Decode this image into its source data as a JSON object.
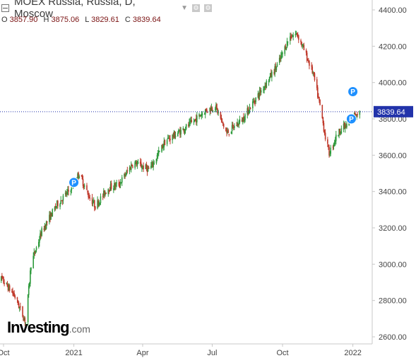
{
  "header": {
    "title": "MOEX Russia, Russia, D, Moscow",
    "ohlc": [
      {
        "label": "O",
        "value": "3857.90"
      },
      {
        "label": "H",
        "value": "3875.06"
      },
      {
        "label": "L",
        "value": "3829.61"
      },
      {
        "label": "C",
        "value": "3839.64"
      }
    ]
  },
  "brand": {
    "name": "Investing",
    "suffix": ".com"
  },
  "colors": {
    "up": "#2e9a3c",
    "down": "#c0392b",
    "axis": "#c8c8c8",
    "price_line": "#2233aa",
    "marker": "#1e90ff"
  },
  "chart_data": {
    "type": "candlestick",
    "title": "MOEX Russia, Russia, D, Moscow",
    "ylim": [
      2550,
      4470
    ],
    "y_ticks": [
      2600,
      2800,
      3000,
      3200,
      3400,
      3600,
      3800,
      4000,
      4200,
      4400
    ],
    "y_tick_labels": [
      "2600.00",
      "2800.00",
      "3000.00",
      "3200.00",
      "3400.00",
      "3600.00",
      "3800.00",
      "4000.00",
      "4200.00",
      "4400.00"
    ],
    "x_tick_labels": [
      {
        "label": "Oct",
        "x": "2020-10-01"
      },
      {
        "label": "2021",
        "x": "2021-01-01"
      },
      {
        "label": "Apr",
        "x": "2021-04-01"
      },
      {
        "label": "Jul",
        "x": "2021-07-01"
      },
      {
        "label": "Oct",
        "x": "2021-10-01"
      },
      {
        "label": "2022",
        "x": "2022-01-01"
      }
    ],
    "xlim": [
      "2020-10-01",
      "2022-01-18"
    ],
    "last_price": {
      "value": 3839.64,
      "label": "3839.64"
    },
    "series": [
      {
        "name": "price",
        "x": [
          "2020-09-28",
          "2020-10-15",
          "2020-10-30",
          "2020-11-06",
          "2020-11-20",
          "2020-12-10",
          "2020-12-25",
          "2021-01-08",
          "2021-01-20",
          "2021-01-29",
          "2021-02-15",
          "2021-03-01",
          "2021-03-20",
          "2021-04-10",
          "2021-05-01",
          "2021-05-20",
          "2021-06-05",
          "2021-06-20",
          "2021-07-05",
          "2021-07-20",
          "2021-08-10",
          "2021-08-25",
          "2021-09-10",
          "2021-09-25",
          "2021-10-10",
          "2021-10-20",
          "2021-10-30",
          "2021-11-10",
          "2021-11-20",
          "2021-11-26",
          "2021-12-01",
          "2021-12-10",
          "2021-12-17",
          "2021-12-24",
          "2021-12-31",
          "2022-01-08"
        ],
        "values": [
          2920,
          2830,
          2680,
          3000,
          3180,
          3330,
          3400,
          3500,
          3380,
          3320,
          3420,
          3440,
          3560,
          3520,
          3680,
          3730,
          3780,
          3840,
          3870,
          3720,
          3800,
          3900,
          4000,
          4100,
          4250,
          4270,
          4170,
          4050,
          3850,
          3700,
          3610,
          3700,
          3750,
          3760,
          3810,
          3840
        ]
      }
    ],
    "markers": [
      {
        "label": "P",
        "x": "2021-01-01",
        "y": 3450
      },
      {
        "label": "P",
        "x": "2022-01-01",
        "y": 3950
      },
      {
        "label": "P",
        "x": "2021-12-30",
        "y": 3800
      }
    ]
  }
}
